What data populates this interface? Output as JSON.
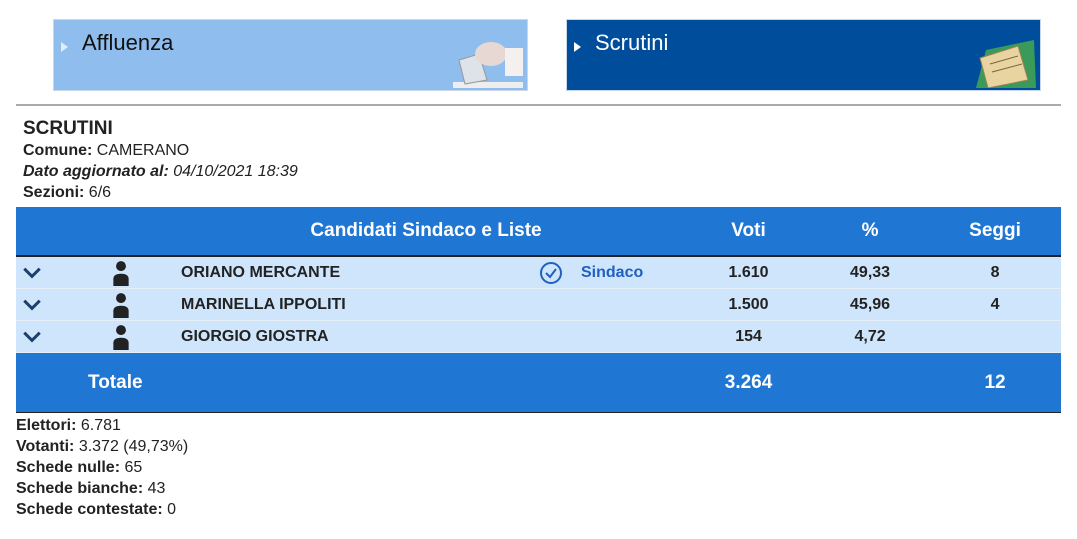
{
  "nav": {
    "affluenza": "Affluenza",
    "scrutini": "Scrutini"
  },
  "info": {
    "title": "SCRUTINI",
    "comune_label": "Comune:",
    "comune": "CAMERANO",
    "dato_label": "Dato aggiornato al:",
    "dato": "04/10/2021 18:39",
    "sezioni_label": "Sezioni:",
    "sezioni": "6/6"
  },
  "table": {
    "headers": {
      "candidati": "Candidati Sindaco e Liste",
      "voti": "Voti",
      "perc": "%",
      "seggi": "Seggi"
    },
    "rows": [
      {
        "name": "ORIANO MERCANTE",
        "elected": "Sindaco",
        "voti": "1.610",
        "perc": "49,33",
        "seggi": "8"
      },
      {
        "name": "MARINELLA IPPOLITI",
        "elected": "",
        "voti": "1.500",
        "perc": "45,96",
        "seggi": "4"
      },
      {
        "name": "GIORGIO GIOSTRA",
        "elected": "",
        "voti": "154",
        "perc": "4,72",
        "seggi": ""
      }
    ],
    "totale": {
      "label": "Totale",
      "voti": "3.264",
      "seggi": "12"
    }
  },
  "footer": {
    "elettori_label": "Elettori:",
    "elettori": "6.781",
    "votanti_label": "Votanti:",
    "votanti": "3.372 (49,73%)",
    "nulle_label": "Schede nulle:",
    "nulle": "65",
    "bianche_label": "Schede bianche:",
    "bianche": "43",
    "contestate_label": "Schede contestate:",
    "contestate": "0"
  }
}
